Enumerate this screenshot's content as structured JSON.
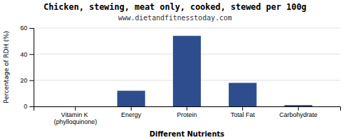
{
  "chart_data": {
    "type": "bar",
    "title": "Chicken, stewing, meat only, cooked, stewed per 100g",
    "subtitle": "www.dietandfitnesstoday.com",
    "xlabel": "Different Nutrients",
    "ylabel": "Percentage of RDH (%)",
    "categories": [
      "Vitamin K (phylloquinone)",
      "Energy",
      "Protein",
      "Total Fat",
      "Carbohydrate"
    ],
    "values": [
      0,
      12,
      54,
      18,
      1
    ],
    "color": "#2e4d8e",
    "ylim": [
      0,
      60
    ],
    "yticks": [
      0,
      20,
      40,
      60
    ],
    "grid": true
  }
}
